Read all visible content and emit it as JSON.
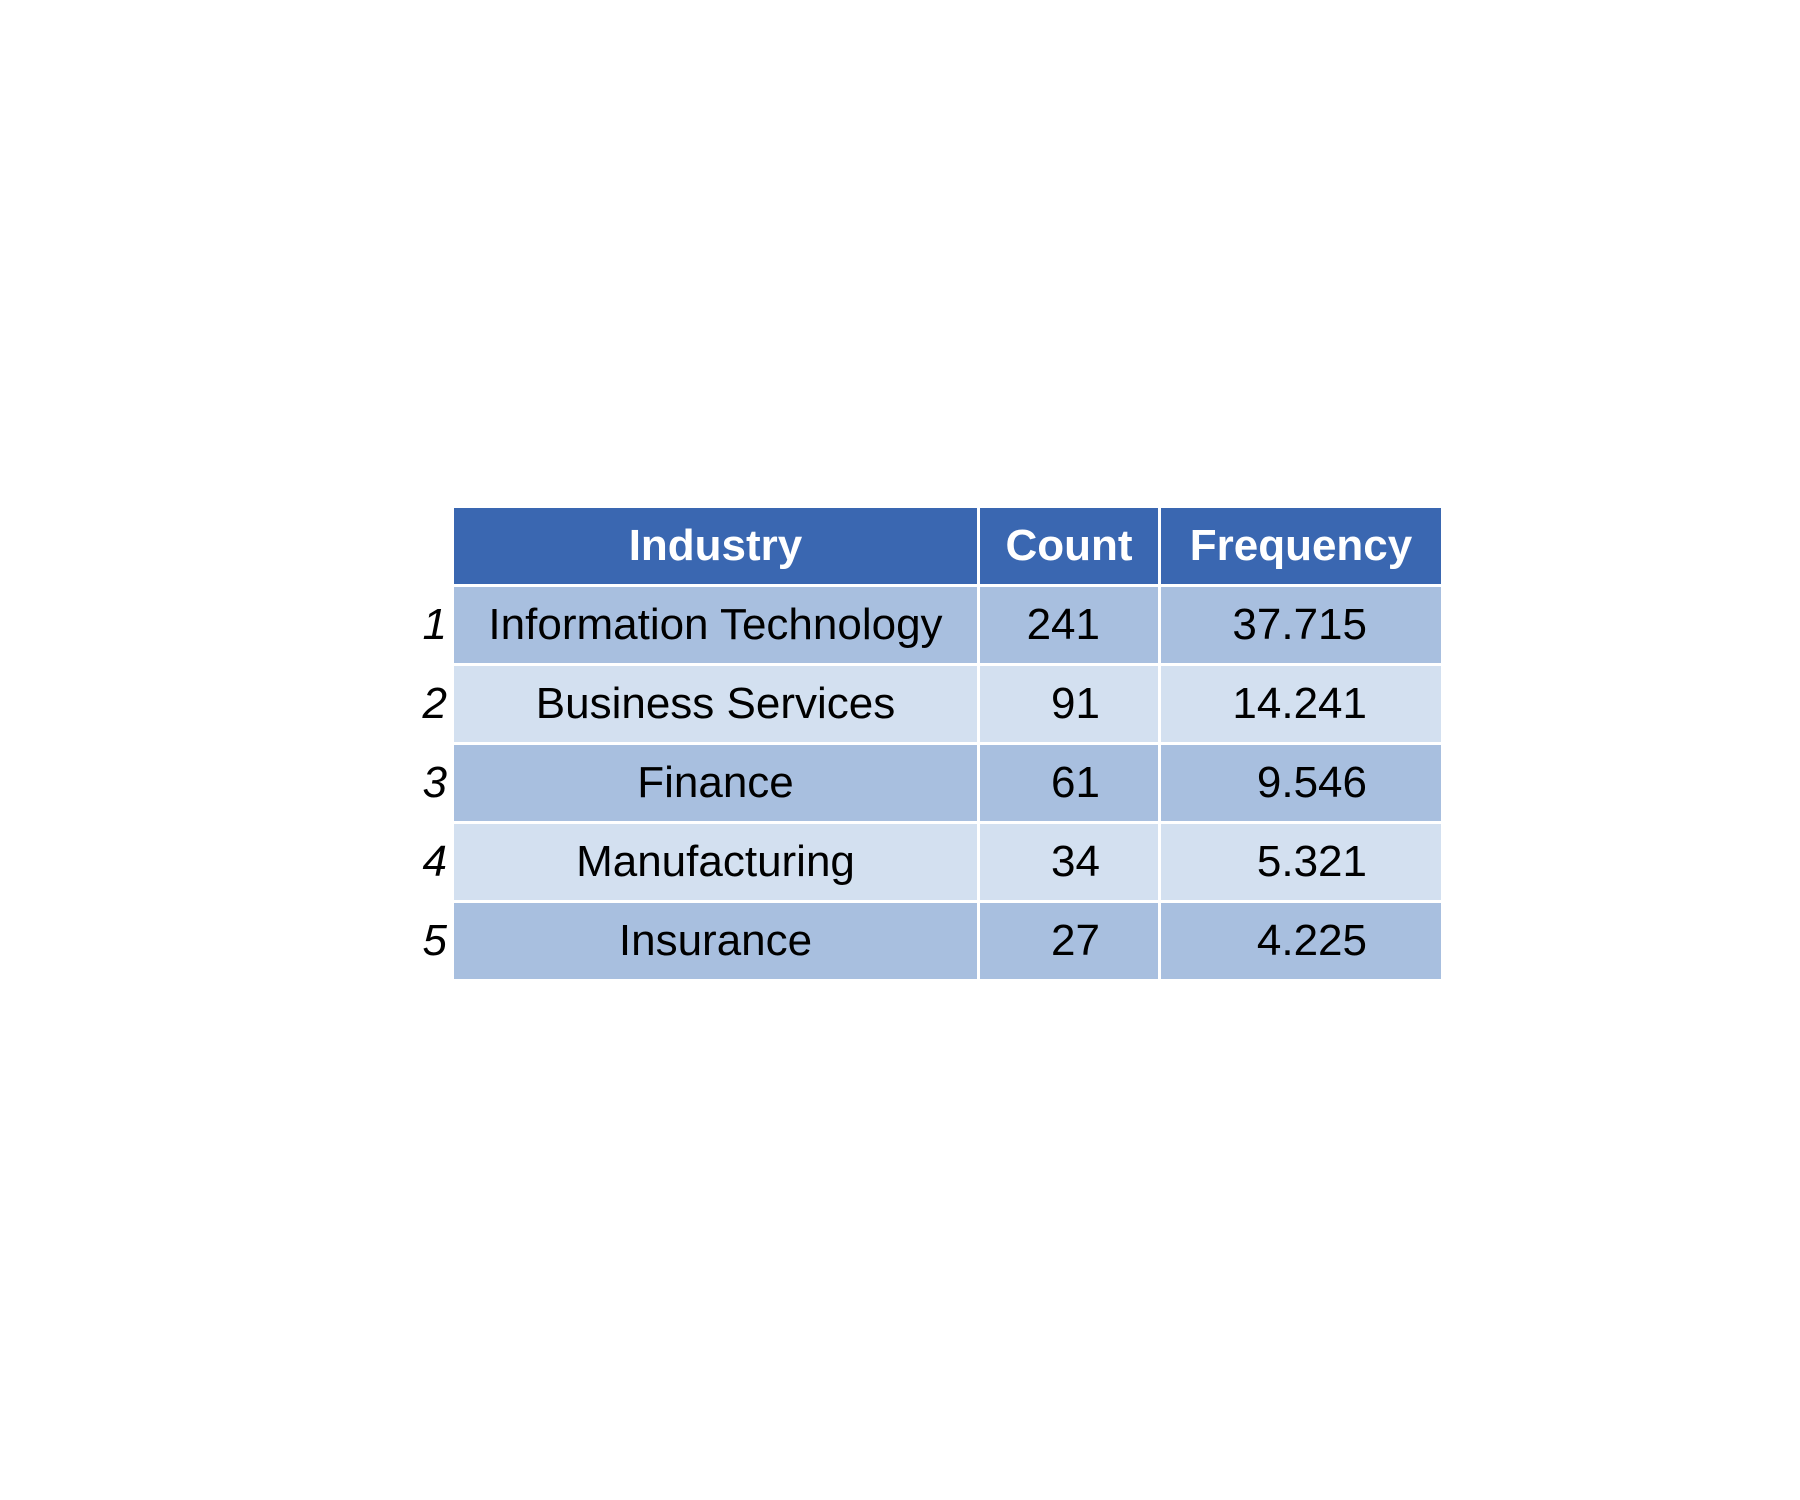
{
  "chart_data": {
    "type": "table",
    "columns": [
      "",
      "Industry",
      "Count",
      "Frequency"
    ],
    "rows": [
      {
        "index": "1",
        "industry": "Information Technology",
        "count": "241",
        "frequency": "37.715"
      },
      {
        "index": "2",
        "industry": "Business Services",
        "count": "91",
        "frequency": "14.241"
      },
      {
        "index": "3",
        "industry": "Finance",
        "count": "61",
        "frequency": "9.546"
      },
      {
        "index": "4",
        "industry": "Manufacturing",
        "count": "34",
        "frequency": "5.321"
      },
      {
        "index": "5",
        "industry": "Insurance",
        "count": "27",
        "frequency": "4.225"
      }
    ],
    "colors": {
      "header_bg": "#3a67b1",
      "header_text": "#ffffff",
      "row_odd": "#a8bfdf",
      "row_even": "#d3e0f0"
    }
  }
}
